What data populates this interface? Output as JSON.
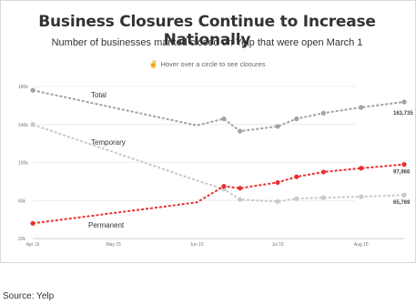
{
  "title": "Business Closures Continue to Increase Nationally",
  "subtitle": "Number of businesses marked closed on Yelp that were open March 1",
  "hint": {
    "icon": "pointer-hand-icon",
    "text": "Hover over a circle to see closures"
  },
  "source": "Source: Yelp",
  "chart_data": {
    "type": "line",
    "x": [
      "2020-04-15",
      "2020-05-15",
      "2020-06-15",
      "2020-06-25",
      "2020-07-10",
      "2020-07-25",
      "2020-08-01",
      "2020-08-08",
      "2020-08-15",
      "2020-08-22",
      "2020-08-31"
    ],
    "x_tick_labels": [
      "Apr 15",
      "May 15",
      "Jun 15",
      "Jul 15",
      "Aug 15"
    ],
    "ylim": [
      20000,
      180000
    ],
    "y_tick_labels": [
      "20k",
      "60k",
      "100k",
      "140k",
      "180k"
    ],
    "grid": "horizontal",
    "series": [
      {
        "name": "Total",
        "color": "#a6a0a0",
        "x": [
          "2020-04-15",
          "2020-06-15",
          "2020-06-25",
          "2020-07-01",
          "2020-07-15",
          "2020-07-22",
          "2020-08-01",
          "2020-08-15",
          "2020-08-31"
        ],
        "values": [
          176000,
          139000,
          146000,
          133000,
          138000,
          146000,
          152000,
          158000,
          163735
        ],
        "end_label": "163,735"
      },
      {
        "name": "Temporary",
        "color": "#c9c9c9",
        "x": [
          "2020-04-15",
          "2020-06-15",
          "2020-06-25",
          "2020-07-01",
          "2020-07-15",
          "2020-07-22",
          "2020-08-01",
          "2020-08-15",
          "2020-08-31"
        ],
        "values": [
          140000,
          81000,
          72000,
          61000,
          59000,
          62000,
          63000,
          64000,
          65769
        ],
        "end_label": "65,769"
      },
      {
        "name": "Permanent",
        "color": "#e8312f",
        "x": [
          "2020-04-15",
          "2020-06-15",
          "2020-06-25",
          "2020-07-01",
          "2020-07-15",
          "2020-07-22",
          "2020-08-01",
          "2020-08-15",
          "2020-08-31"
        ],
        "values": [
          36000,
          58000,
          75000,
          73000,
          79000,
          85000,
          90000,
          94000,
          97966
        ],
        "end_label": "97,966"
      }
    ]
  }
}
